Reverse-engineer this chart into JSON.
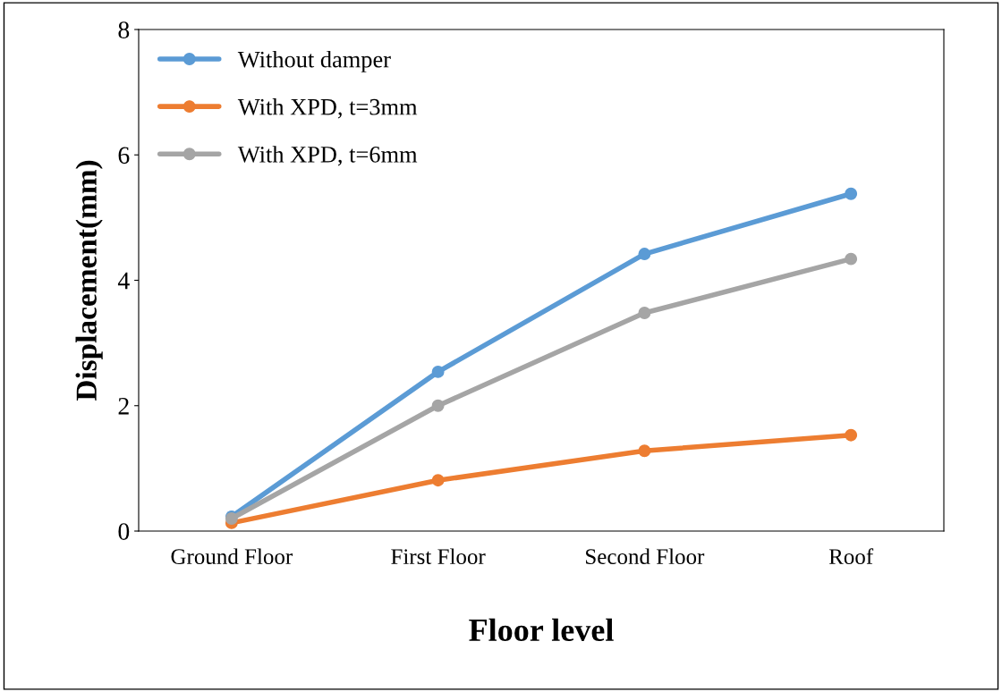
{
  "chart_data": {
    "type": "line",
    "xlabel": "Floor level",
    "ylabel": "Displacement(mm)",
    "categories": [
      "Ground Floor",
      "First Floor",
      "Second Floor",
      "Roof"
    ],
    "series": [
      {
        "name": "Without damper",
        "color": "#5b9bd5",
        "values": [
          0.23,
          2.54,
          4.42,
          5.38
        ]
      },
      {
        "name": "With XPD, t=3mm",
        "color": "#ed7d31",
        "values": [
          0.13,
          0.81,
          1.28,
          1.53
        ]
      },
      {
        "name": "With XPD, t=6mm",
        "color": "#a5a5a5",
        "values": [
          0.2,
          2.0,
          3.48,
          4.34
        ]
      }
    ],
    "ylim": [
      0,
      8
    ],
    "yticks": [
      0,
      2,
      4,
      6,
      8
    ],
    "grid": false,
    "legend": "top left",
    "marker": "circle",
    "line_style": "solid"
  }
}
